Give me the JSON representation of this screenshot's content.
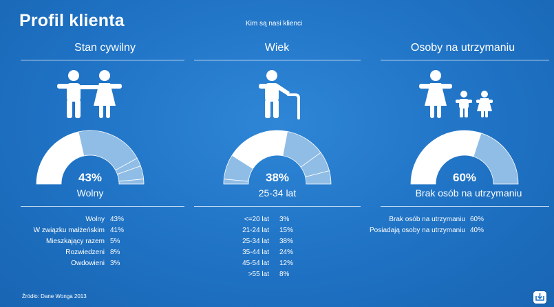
{
  "header": {
    "title": "Profil klienta",
    "subtitle": "Kim są nasi klienci"
  },
  "colors": {
    "primary": "#ffffff",
    "secondary": "#8fbde6",
    "background": "#1f72c4"
  },
  "chart_data": [
    {
      "type": "pie",
      "title": "Stan cywilny",
      "icon": "couple-icon",
      "highlight_label": "43%",
      "highlight_caption": "Wolny",
      "categories": [
        "Wolny",
        "W związku małżeńskim",
        "Mieszkający razem",
        "Rozwiedzeni",
        "Owdowieni"
      ],
      "values": [
        43,
        41,
        5,
        8,
        3
      ],
      "value_labels": [
        "43%",
        "41%",
        "5%",
        "8%",
        "3%"
      ]
    },
    {
      "type": "pie",
      "title": "Wiek",
      "icon": "elderly-person-icon",
      "highlight_label": "38%",
      "highlight_caption": "25-34 lat",
      "categories": [
        "<=20 lat",
        "21-24 lat",
        "25-34 lat",
        "35-44 lat",
        "45-54 lat",
        ">55 lat"
      ],
      "values": [
        3,
        15,
        38,
        24,
        12,
        8
      ],
      "value_labels": [
        "3%",
        "15%",
        "38%",
        "24%",
        "12%",
        "8%"
      ]
    },
    {
      "type": "pie",
      "title": "Osoby na utrzymaniu",
      "icon": "family-icon",
      "highlight_label": "60%",
      "highlight_caption": "Brak osób na utrzymaniu",
      "categories": [
        "Brak osób na utrzymaniu",
        "Posiadają osoby na utrzymaniu"
      ],
      "values": [
        60,
        40
      ],
      "value_labels": [
        "60%",
        "40%"
      ]
    }
  ],
  "footer": {
    "source": "Źródło: Dane Wonga 2013",
    "download_icon": "download-icon"
  }
}
